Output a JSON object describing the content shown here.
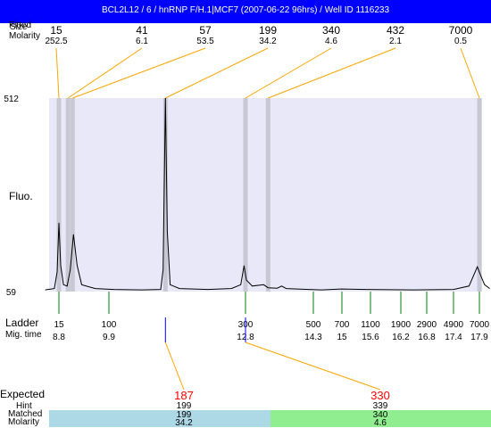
{
  "title": "BCL2L12 / 6 / hnRNP F/H.1|MCF7 (2007-06-22 96hrs) / Well ID 1116233",
  "row_labels": {
    "peak_size_a": "Fitted",
    "peak_size_b": "Size",
    "molarity": "Molarity",
    "fluo": "Fluo.",
    "ladder": "Ladder",
    "mig_time": "Mig. time",
    "expected": "Expected",
    "hint": "Hint",
    "matched": "Matched",
    "matched_molarity": "Molarity"
  },
  "chart_data": {
    "type": "line",
    "title": "BCL2L12 / 6 / hnRNP F/H.1|MCF7 (2007-06-22 96hrs) / Well ID 1116233",
    "ylabel": "Fluo.",
    "ylim": [
      59,
      512
    ],
    "y_ticks": [
      "512",
      "59"
    ],
    "xlim": [
      8.5,
      18.1
    ],
    "fitted_peaks": [
      {
        "size": "15",
        "molarity": "252.5",
        "time": 8.8
      },
      {
        "size": "41",
        "molarity": "6.1",
        "time": 9.0
      },
      {
        "size": "57",
        "molarity": "53.5",
        "time": 9.1
      },
      {
        "size": "199",
        "molarity": "34.2",
        "time": 11.1
      },
      {
        "size": "340",
        "molarity": "4.6",
        "time": 12.8
      },
      {
        "size": "432",
        "molarity": "2.1",
        "time": 13.3
      },
      {
        "size": "7000",
        "molarity": "0.5",
        "time": 17.9
      }
    ],
    "ladder": [
      {
        "size": "15",
        "time": "8.8"
      },
      {
        "size": "100",
        "time": "9.9"
      },
      {
        "size": "300",
        "time": "12.8"
      },
      {
        "size": "500",
        "time": "14.3"
      },
      {
        "size": "700",
        "time": "15"
      },
      {
        "size": "1100",
        "time": "15.6"
      },
      {
        "size": "1900",
        "time": "16.2"
      },
      {
        "size": "2900",
        "time": "16.8"
      },
      {
        "size": "4900",
        "time": "17.4"
      },
      {
        "size": "7000",
        "time": "17.9"
      }
    ],
    "trace": [
      [
        8.5,
        63
      ],
      [
        8.7,
        66
      ],
      [
        8.76,
        105
      ],
      [
        8.8,
        220
      ],
      [
        8.84,
        120
      ],
      [
        8.9,
        75
      ],
      [
        8.98,
        72
      ],
      [
        9.05,
        110
      ],
      [
        9.12,
        193
      ],
      [
        9.2,
        120
      ],
      [
        9.3,
        75
      ],
      [
        9.6,
        66
      ],
      [
        10.0,
        64
      ],
      [
        10.6,
        63
      ],
      [
        11.0,
        64
      ],
      [
        11.05,
        110
      ],
      [
        11.1,
        512
      ],
      [
        11.14,
        200
      ],
      [
        11.2,
        75
      ],
      [
        11.4,
        66
      ],
      [
        12.0,
        64
      ],
      [
        12.5,
        66
      ],
      [
        12.7,
        75
      ],
      [
        12.77,
        120
      ],
      [
        12.82,
        86
      ],
      [
        12.95,
        72
      ],
      [
        13.2,
        75
      ],
      [
        13.3,
        68
      ],
      [
        13.5,
        67
      ],
      [
        13.6,
        72
      ],
      [
        13.7,
        66
      ],
      [
        14.2,
        64
      ],
      [
        14.5,
        63
      ],
      [
        15.0,
        65
      ],
      [
        15.5,
        64
      ],
      [
        16.5,
        63
      ],
      [
        17.4,
        64
      ],
      [
        17.7,
        72
      ],
      [
        17.86,
        117
      ],
      [
        17.92,
        98
      ],
      [
        18.0,
        75
      ],
      [
        18.1,
        66
      ]
    ],
    "bands": [
      8.8,
      9.0,
      9.1,
      11.1,
      12.8,
      13.3,
      17.9
    ],
    "expected": [
      {
        "expected": "187",
        "hint": "199",
        "matched": "199",
        "molarity": "34.2",
        "peak_time": 11.1,
        "color": "#add8e6"
      },
      {
        "expected": "330",
        "hint": "339",
        "matched": "340",
        "molarity": "4.6",
        "peak_time": 12.8,
        "color": "#90ee90"
      }
    ]
  },
  "colors": {
    "title_bar": "#0000ff",
    "plot_bg": "#e8e8f8",
    "band": "#c8c8d4",
    "connector": "#ffa500",
    "ladder_tick": "#008000",
    "ref_marker": "#0000ff",
    "expected_text": "#ff0000"
  }
}
